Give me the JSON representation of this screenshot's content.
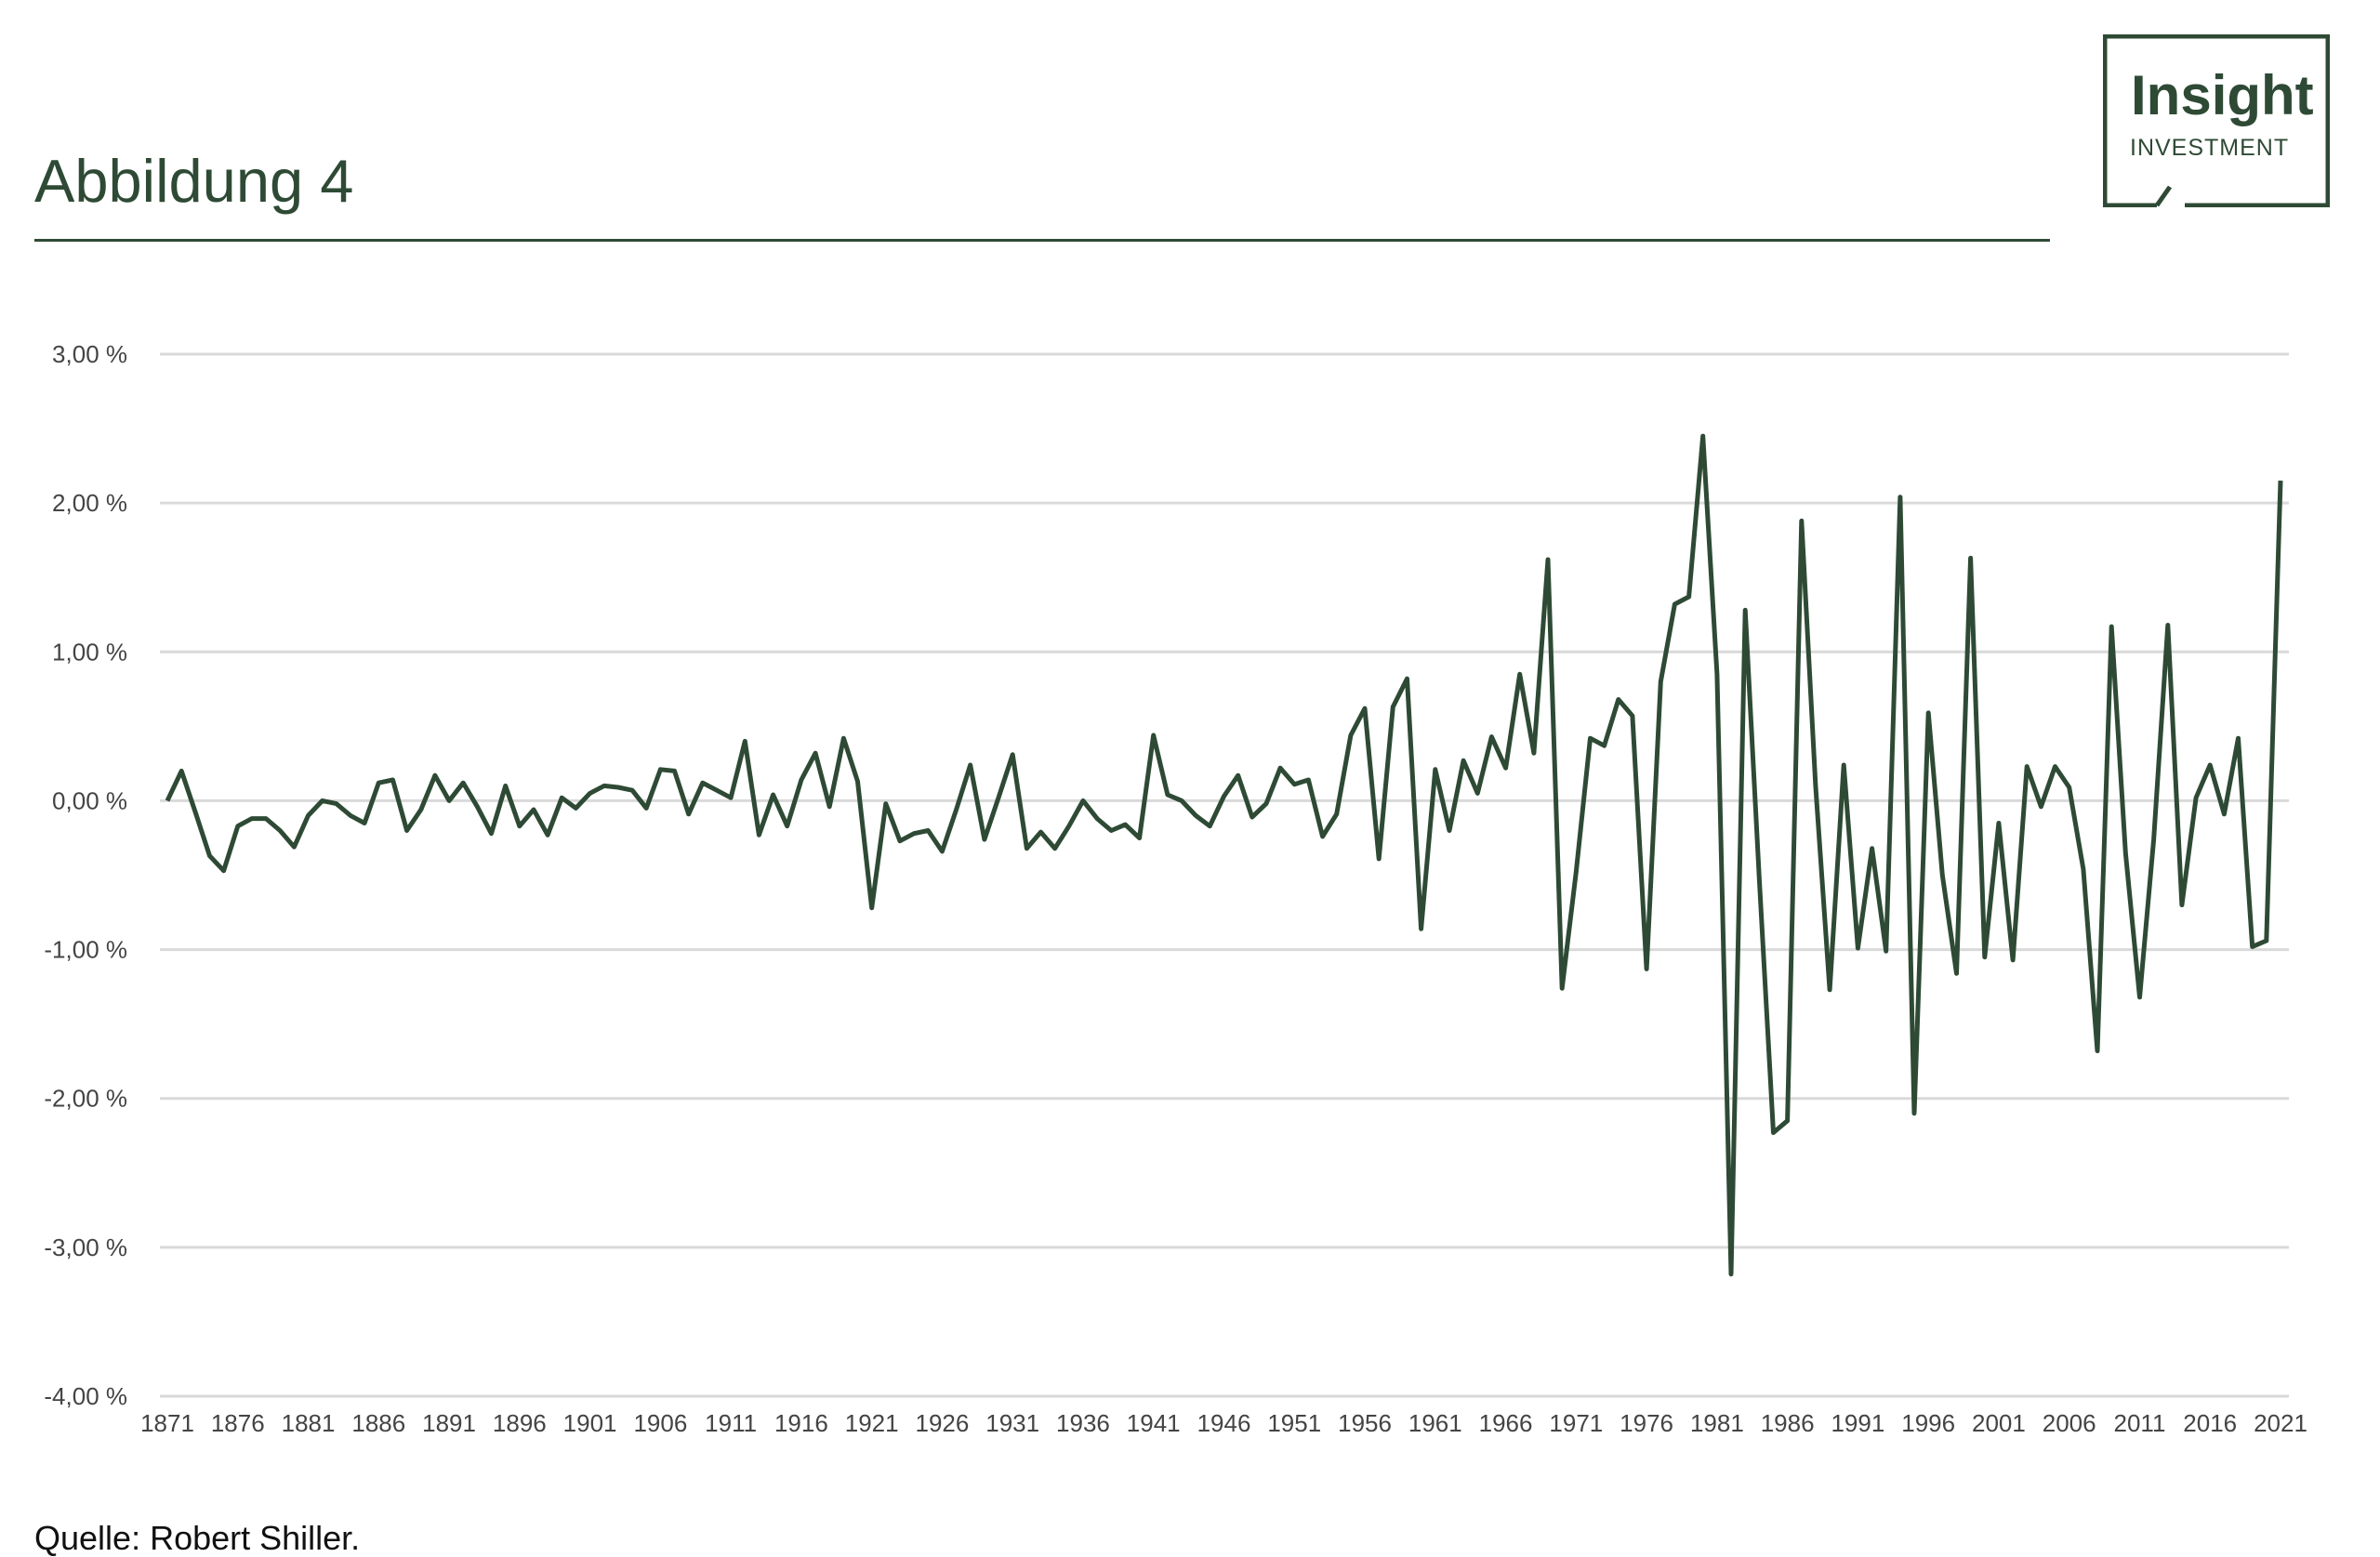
{
  "header": {
    "title": "Abbildung 4"
  },
  "logo": {
    "line1": "Insight",
    "line2": "INVESTMENT"
  },
  "footer": {
    "source": "Quelle: Robert Shiller."
  },
  "colors": {
    "accent": "#2e4a35",
    "grid": "#d9d9d9",
    "line": "#2e4a35"
  },
  "chart_data": {
    "type": "line",
    "title": "",
    "xlabel": "",
    "ylabel": "",
    "ylim": [
      -4,
      3
    ],
    "grid": true,
    "y_ticks": [
      3,
      2,
      1,
      0,
      -1,
      -2,
      -3,
      -4
    ],
    "y_tick_labels": [
      "3,00 %",
      "2,00 %",
      "1,00 %",
      "0,00 %",
      "-1,00 %",
      "-2,00 %",
      "-3,00 %",
      "-4,00 %"
    ],
    "x_tick_labels": [
      "1871",
      "1876",
      "1881",
      "1886",
      "1891",
      "1896",
      "1901",
      "1906",
      "1911",
      "1916",
      "1921",
      "1926",
      "1931",
      "1936",
      "1941",
      "1946",
      "1951",
      "1956",
      "1961",
      "1966",
      "1971",
      "1976",
      "1981",
      "1986",
      "1991",
      "1996",
      "2001",
      "2006",
      "2011",
      "2016",
      "2021"
    ],
    "x_start": 1871,
    "x_end": 2022,
    "series": [
      {
        "values": [
          0.0,
          0.2,
          -0.08,
          -0.37,
          -0.47,
          -0.17,
          -0.12,
          -0.12,
          -0.2,
          -0.31,
          -0.1,
          0.0,
          -0.02,
          -0.1,
          -0.15,
          0.12,
          0.14,
          -0.2,
          -0.06,
          0.17,
          0.0,
          0.12,
          -0.04,
          -0.22,
          0.1,
          -0.17,
          -0.06,
          -0.23,
          0.02,
          -0.05,
          0.05,
          0.1,
          0.09,
          0.07,
          -0.05,
          0.21,
          0.2,
          -0.09,
          0.12,
          0.07,
          0.02,
          0.4,
          -0.23,
          0.04,
          -0.17,
          0.14,
          0.32,
          -0.04,
          0.42,
          0.13,
          -0.72,
          -0.02,
          -0.27,
          -0.22,
          -0.2,
          -0.34,
          -0.06,
          0.24,
          -0.26,
          0.02,
          0.31,
          -0.32,
          -0.21,
          -0.32,
          -0.17,
          0.0,
          -0.12,
          -0.2,
          -0.16,
          -0.25,
          0.44,
          0.04,
          0.0,
          -0.1,
          -0.17,
          0.03,
          0.17,
          -0.11,
          -0.02,
          0.22,
          0.11,
          0.14,
          -0.24,
          -0.09,
          0.44,
          0.62,
          -0.39,
          0.63,
          0.82,
          -0.86,
          0.21,
          -0.2,
          0.27,
          0.05,
          0.43,
          0.22,
          0.85,
          0.32,
          1.62,
          -1.26,
          -0.48,
          0.42,
          0.37,
          0.68,
          0.57,
          -1.13,
          0.8,
          1.32,
          1.37,
          2.45,
          0.85,
          -3.18,
          1.28,
          -0.52,
          -2.23,
          -2.15,
          1.88,
          0.1,
          -1.27,
          0.24,
          -0.99,
          -0.32,
          -1.01,
          2.04,
          -2.1,
          0.59,
          -0.5,
          -1.16,
          1.63,
          -1.05,
          -0.15,
          -1.07,
          0.23,
          -0.04,
          0.23,
          0.09,
          -0.46,
          -1.68,
          1.17,
          -0.35,
          -1.32,
          -0.26,
          1.18,
          -0.7,
          0.02,
          0.24,
          -0.09,
          0.42,
          -0.98,
          -0.94,
          2.15
        ]
      }
    ]
  }
}
